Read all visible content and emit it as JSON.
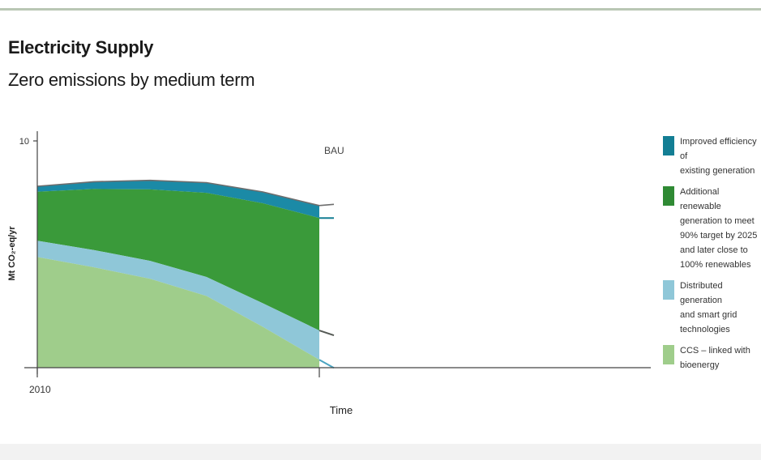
{
  "chart_data": {
    "type": "area",
    "title": "Electricity Supply",
    "subtitle": "Zero emissions by medium term",
    "xlabel": "Time",
    "ylabel": "Mt CO₂-eq/yr",
    "x_tick_labels": [
      "2010"
    ],
    "y_tick_labels": [
      "10"
    ],
    "ylim": [
      0,
      10
    ],
    "x": [
      0,
      0.2,
      0.4,
      0.6,
      0.8,
      1.0
    ],
    "bau_label": "BAU",
    "series": [
      {
        "name": "Improved efficiency of existing generation",
        "color": "#1b8aa6",
        "values": [
          0.24,
          0.32,
          0.4,
          0.45,
          0.5,
          0.55
        ]
      },
      {
        "name": "Additional renewable generation to meet 90% target by 2025 and later close to 100% renewables",
        "color": "#3a9a3a",
        "values": [
          2.16,
          2.69,
          3.15,
          3.71,
          4.41,
          4.96
        ]
      },
      {
        "name": "Distributed generation and smart grid technologies",
        "color": "#8fc7d8",
        "values": [
          0.72,
          0.76,
          0.79,
          0.84,
          1.04,
          1.29
        ]
      },
      {
        "name": "CCS – linked with bioenergy",
        "color": "#9fcd8b",
        "values": [
          4.88,
          4.43,
          3.92,
          3.16,
          1.8,
          0.35
        ]
      }
    ],
    "legend": {
      "position": "right",
      "items": [
        {
          "label": "Improved efficiency of\nexisting generation",
          "color": "#137e94"
        },
        {
          "label": "Additional renewable\ngeneration to meet\n90% target by 2025\nand later close to\n100% renewables",
          "color": "#2f8a34"
        },
        {
          "label": "Distributed generation\nand smart grid\ntechnologies",
          "color": "#8fc7d8"
        },
        {
          "label": "CCS – linked with\nbioenergy",
          "color": "#9fcd8b"
        }
      ]
    },
    "grid": false
  }
}
